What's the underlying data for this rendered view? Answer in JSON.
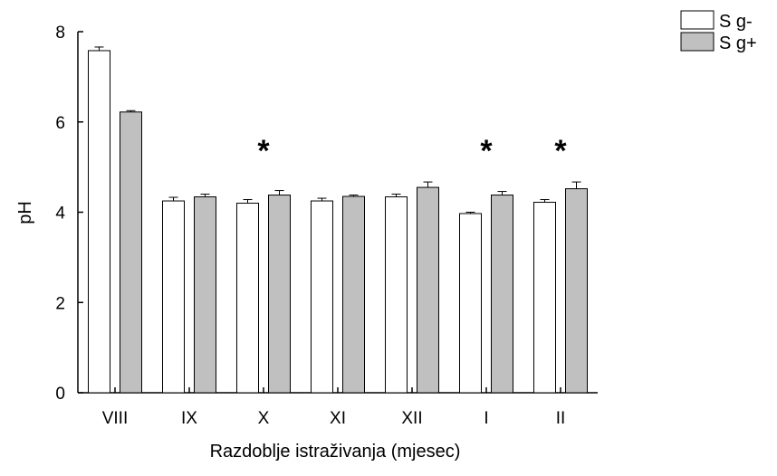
{
  "chart_data": {
    "type": "bar",
    "title": "",
    "xlabel": "Razdoblje istraživanja (mjesec)",
    "ylabel": "pH",
    "ylim": [
      0,
      8
    ],
    "yticks": [
      "0",
      "2",
      "4",
      "6",
      "8"
    ],
    "categories": [
      "VIII",
      "IX",
      "X",
      "XI",
      "XII",
      "I",
      "II"
    ],
    "series": [
      {
        "name": "S g-",
        "color": "#ffffff",
        "values": [
          7.58,
          4.25,
          4.2,
          4.25,
          4.34,
          3.97,
          4.22
        ],
        "errors": [
          0.08,
          0.08,
          0.08,
          0.06,
          0.06,
          0.03,
          0.06
        ]
      },
      {
        "name": "S g+",
        "color": "#c0c0c0",
        "values": [
          6.22,
          4.34,
          4.38,
          4.35,
          4.55,
          4.38,
          4.52
        ],
        "errors": [
          0.03,
          0.06,
          0.1,
          0.03,
          0.12,
          0.08,
          0.15
        ]
      }
    ],
    "annotations": [
      {
        "category": "X",
        "text": "*"
      },
      {
        "category": "I",
        "text": "*"
      },
      {
        "category": "II",
        "text": "*"
      }
    ],
    "grid": false,
    "legend": "top-right"
  }
}
